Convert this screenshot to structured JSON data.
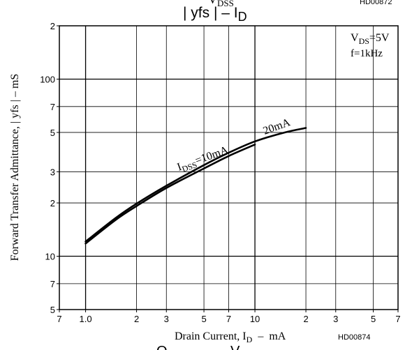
{
  "chart_data": {
    "type": "line",
    "title": "| yfs |  –  I",
    "title_sub": "D",
    "top_fragment": "V",
    "top_fragment_sub": "DSS",
    "top_right_code": "HD00872",
    "xlabel": "Drain Current, I",
    "xlabel_sub": "D",
    "xlabel_suffix": "  –  mA",
    "ylabel": "Forward Transfer Admittance, | yfs |  –  mS",
    "x_scale": "log",
    "y_scale": "log",
    "xlim": [
      0.7,
      70
    ],
    "ylim": [
      5,
      200
    ],
    "grid": true,
    "x_tick_labels": [
      {
        "v": 0.7,
        "t": "7"
      },
      {
        "v": 1.0,
        "t": "1.0"
      },
      {
        "v": 2,
        "t": "2"
      },
      {
        "v": 3,
        "t": "3"
      },
      {
        "v": 5,
        "t": "5"
      },
      {
        "v": 7,
        "t": "7"
      },
      {
        "v": 10,
        "t": "10"
      },
      {
        "v": 20,
        "t": "2"
      },
      {
        "v": 30,
        "t": "3"
      },
      {
        "v": 50,
        "t": "5"
      },
      {
        "v": 70,
        "t": "7"
      }
    ],
    "y_tick_labels": [
      {
        "v": 5,
        "t": "5"
      },
      {
        "v": 7,
        "t": "7"
      },
      {
        "v": 10,
        "t": "10"
      },
      {
        "v": 20,
        "t": "2"
      },
      {
        "v": 30,
        "t": "3"
      },
      {
        "v": 50,
        "t": "5"
      },
      {
        "v": 70,
        "t": "7"
      },
      {
        "v": 100,
        "t": "100"
      },
      {
        "v": 200,
        "t": "2"
      }
    ],
    "series": [
      {
        "x": [
          1.0,
          1.5,
          2,
          3,
          5,
          7,
          10
        ],
        "y": [
          11.8,
          16.0,
          19.2,
          24.3,
          31.3,
          36.8,
          42.7
        ]
      },
      {
        "x": [
          1.0,
          1.5,
          2,
          3,
          5,
          7,
          10,
          15,
          20
        ],
        "y": [
          12.1,
          16.4,
          19.8,
          25.0,
          32.7,
          38.4,
          44.5,
          50.0,
          53.0
        ]
      }
    ],
    "conditions": {
      "line1": "V",
      "line1_sub": "DS",
      "line1_suffix": "=5V",
      "line2": "f=1kHz"
    },
    "annotation": {
      "prefix": "I",
      "sub": "DSS",
      "text": "=10mA",
      "text2": "20mA"
    },
    "bottom_right_code": "HD00874",
    "bottom_fragment": "O",
    "bottom_fragment2": "V"
  }
}
